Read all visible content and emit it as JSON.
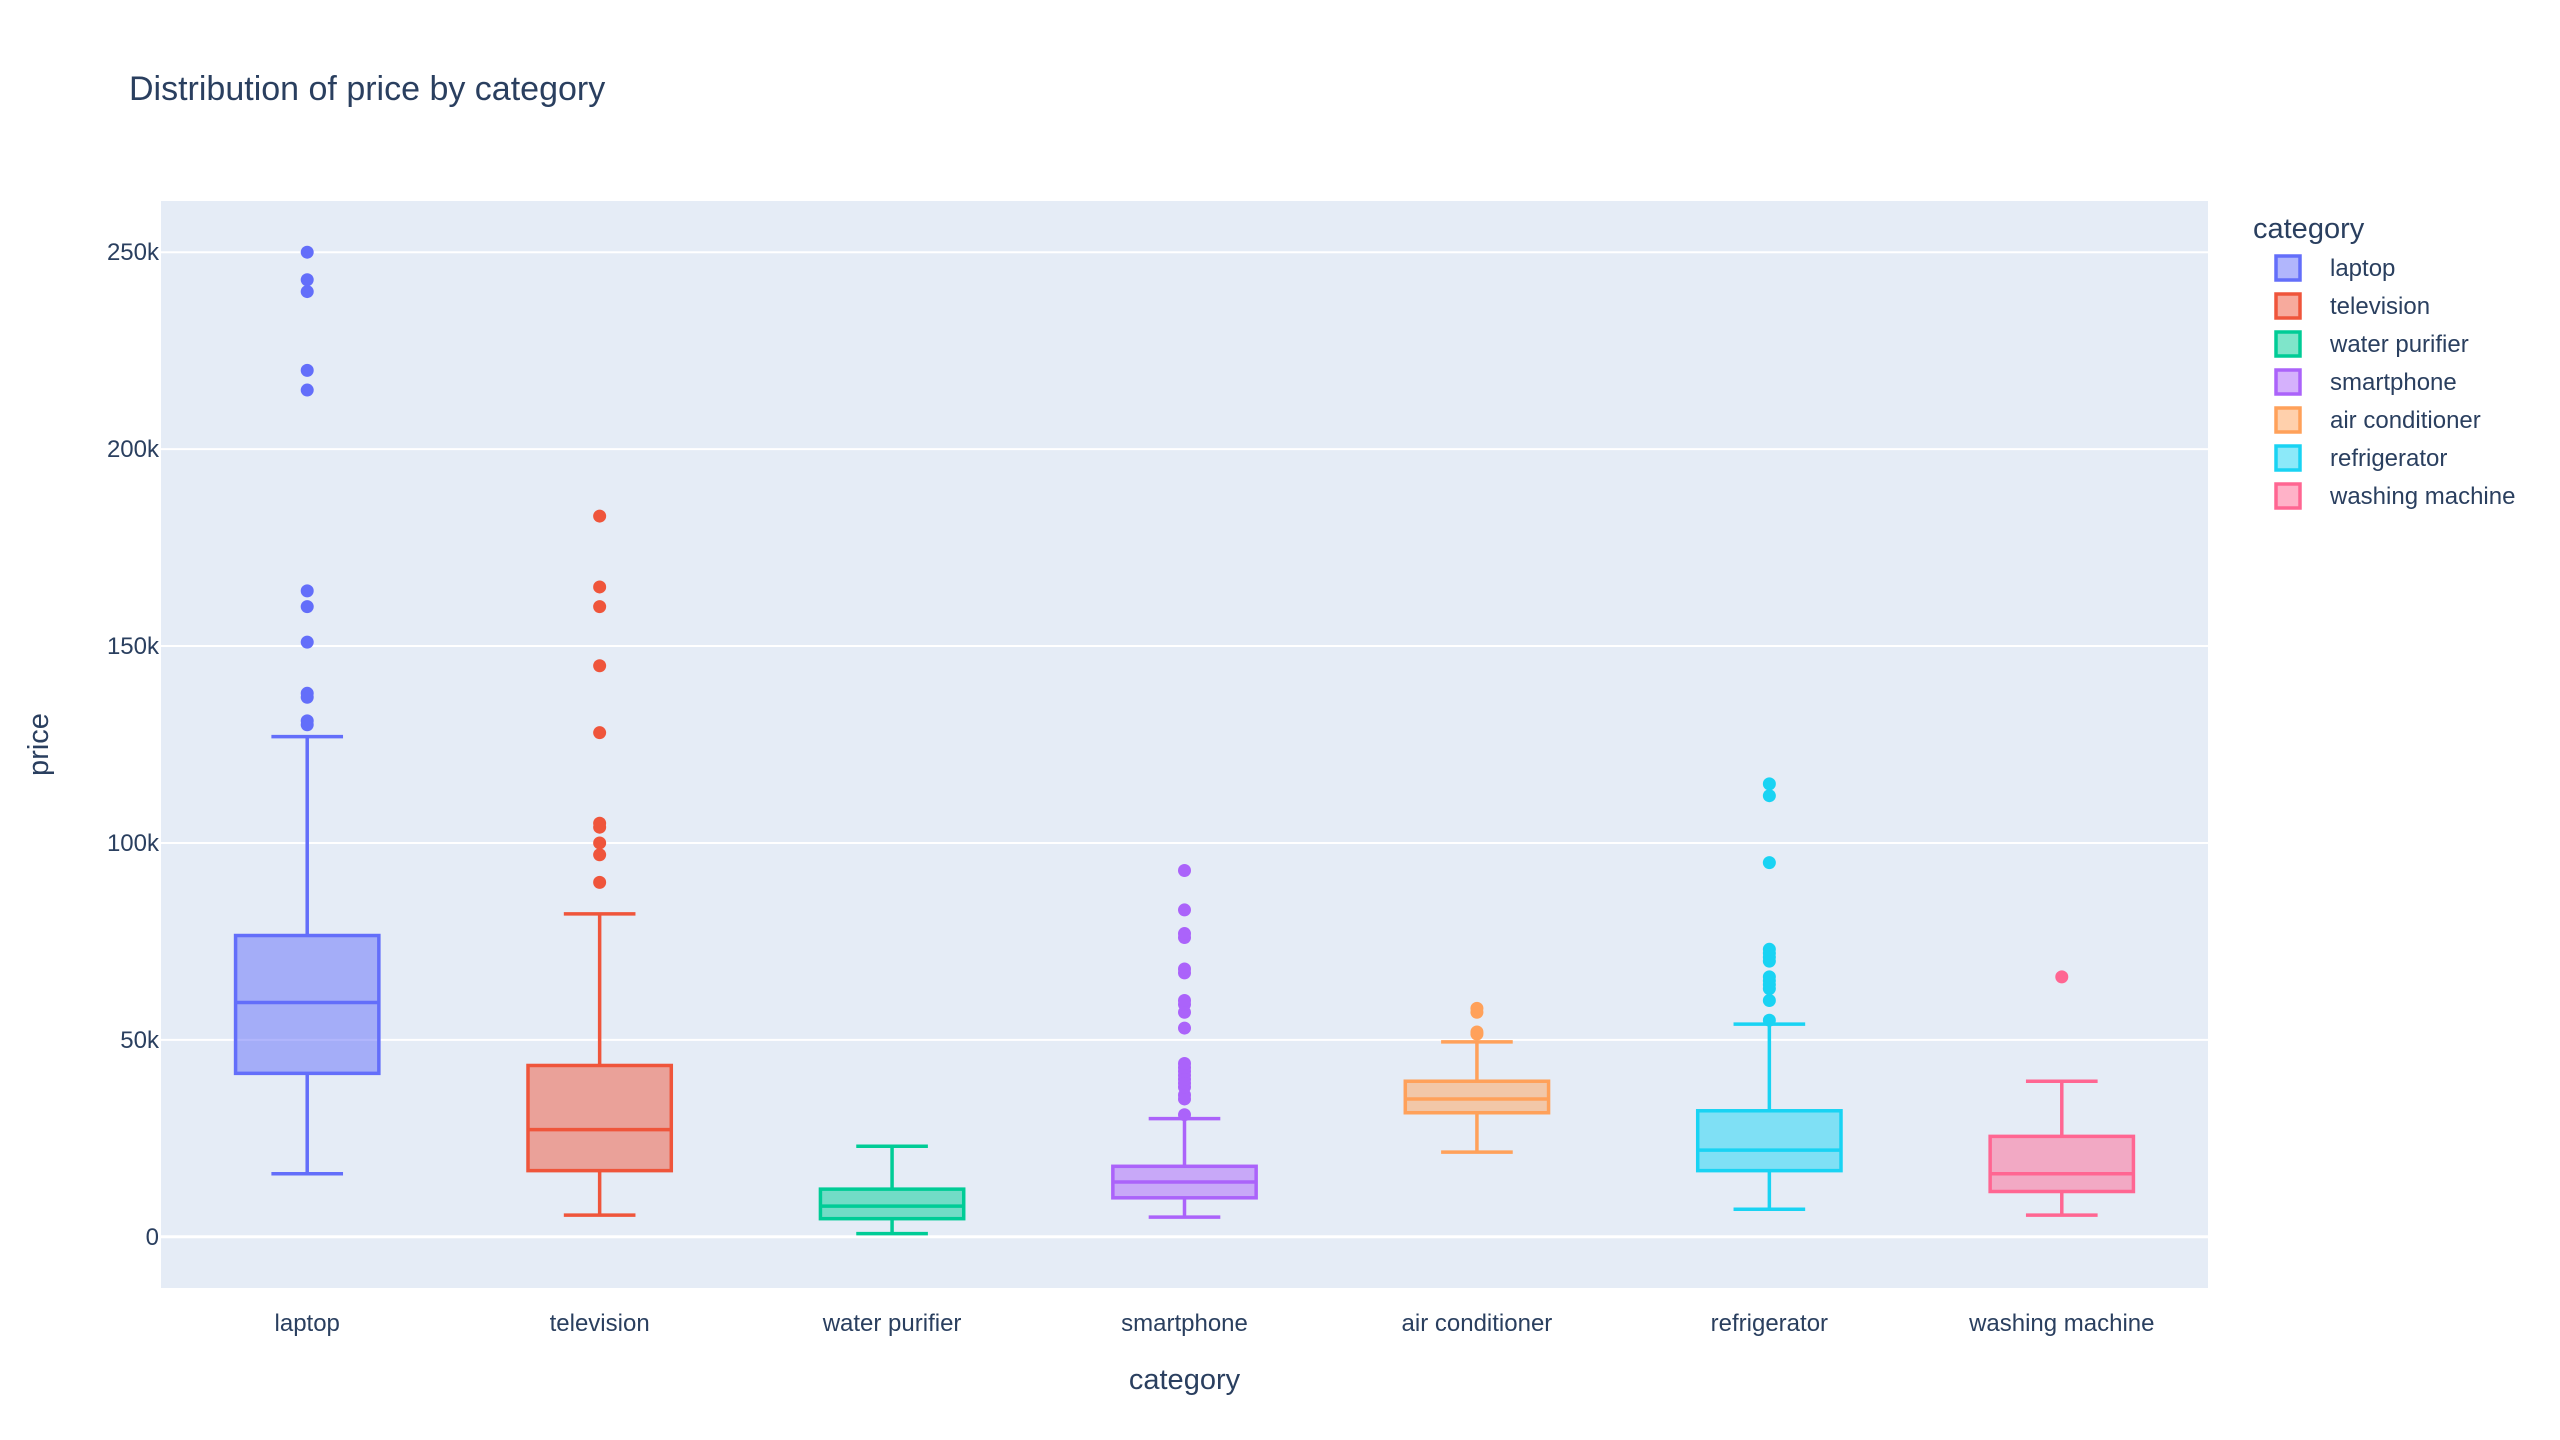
{
  "chart_data": {
    "type": "box",
    "title": "Distribution of price by category",
    "xlabel": "category",
    "ylabel": "price",
    "ylim": [
      -13000,
      263000
    ],
    "yticks": [
      0,
      50000,
      100000,
      150000,
      200000,
      250000
    ],
    "ytick_labels": [
      "0",
      "50k",
      "100k",
      "150k",
      "200k",
      "250k"
    ],
    "grid": true,
    "background_color": "#e5ecf6",
    "legend_title": "category",
    "legend_position": "right",
    "categories": [
      "laptop",
      "television",
      "water purifier",
      "smartphone",
      "air conditioner",
      "refrigerator",
      "washing machine"
    ],
    "series": [
      {
        "name": "laptop",
        "color": "#636efa",
        "whisker_low": 16000,
        "q1": 41500,
        "median": 59500,
        "q3": 76500,
        "whisker_high": 127000,
        "outliers": [
          130000,
          131000,
          137000,
          138000,
          151000,
          160000,
          164000,
          215000,
          220000,
          240000,
          243000,
          250000
        ]
      },
      {
        "name": "television",
        "color": "#ef553b",
        "whisker_low": 5500,
        "q1": 16800,
        "median": 27200,
        "q3": 43500,
        "whisker_high": 82000,
        "outliers": [
          90000,
          97000,
          100000,
          104000,
          105000,
          128000,
          145000,
          160000,
          165000,
          183000
        ]
      },
      {
        "name": "water purifier",
        "color": "#00cc96",
        "whisker_low": 800,
        "q1": 4600,
        "median": 7800,
        "q3": 12100,
        "whisker_high": 23000,
        "outliers": []
      },
      {
        "name": "smartphone",
        "color": "#ab63fa",
        "whisker_low": 5000,
        "q1": 9900,
        "median": 13900,
        "q3": 17900,
        "whisker_high": 30000,
        "outliers": [
          31000,
          35000,
          36000,
          38000,
          39000,
          40000,
          41000,
          42000,
          43000,
          44000,
          53000,
          57000,
          59000,
          60000,
          67000,
          68000,
          76000,
          77000,
          83000,
          93000
        ]
      },
      {
        "name": "air conditioner",
        "color": "#ffa15a",
        "whisker_low": 21500,
        "q1": 31500,
        "median": 35000,
        "q3": 39500,
        "whisker_high": 49500,
        "outliers": [
          51500,
          52000,
          57000,
          58000
        ]
      },
      {
        "name": "refrigerator",
        "color": "#19d3f3",
        "whisker_low": 7000,
        "q1": 16800,
        "median": 22000,
        "q3": 32000,
        "whisker_high": 54000,
        "outliers": [
          55000,
          60000,
          63000,
          64000,
          65000,
          66000,
          70000,
          71000,
          72000,
          73000,
          95000,
          112000,
          115000
        ]
      },
      {
        "name": "washing machine",
        "color": "#ff6692",
        "whisker_low": 5500,
        "q1": 11500,
        "median": 16000,
        "q3": 25500,
        "whisker_high": 39500,
        "outliers": [
          66000
        ]
      }
    ]
  }
}
